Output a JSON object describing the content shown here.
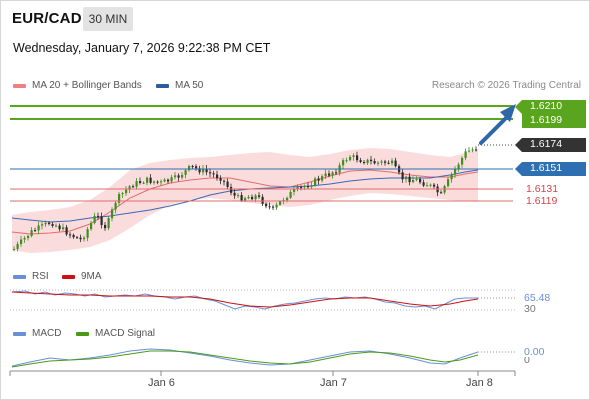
{
  "header": {
    "symbol": "EUR/CAD",
    "timeframe": "30 MIN",
    "timestamp": "Wednesday, January 7, 2026 9:22:38 PM CET"
  },
  "legend": {
    "bollinger": {
      "label": "MA 20 + Bollinger Bands",
      "color": "#f08080"
    },
    "ma50": {
      "label": "MA 50",
      "color": "#2d5c9e"
    },
    "credit": "Research © 2026 Trading Central"
  },
  "levels": {
    "r2": "1.6210",
    "r1": "1.6199",
    "current": "1.6174",
    "pivot": "1.6151",
    "s1": "1.6131",
    "s2": "1.6119"
  },
  "rsi": {
    "label": "RSI",
    "ma_label": "9MA",
    "value": "65.48",
    "lower_tick": "30",
    "rsi_color": "#6a8fd8",
    "ma_color": "#cc1111"
  },
  "macd": {
    "label": "MACD",
    "signal_label": "MACD Signal",
    "value": "0.00",
    "zero_tick": "0",
    "macd_color": "#6a8fd8",
    "signal_color": "#4a9a1a"
  },
  "xaxis": {
    "labels": [
      "Jan 6",
      "Jan 7",
      "Jan 8"
    ]
  },
  "colors": {
    "resistance": "#5aa51e",
    "pivot": "#2d6fb0",
    "support": "#e06c6c",
    "current": "#333333",
    "arrow": "#2e67a8"
  }
}
